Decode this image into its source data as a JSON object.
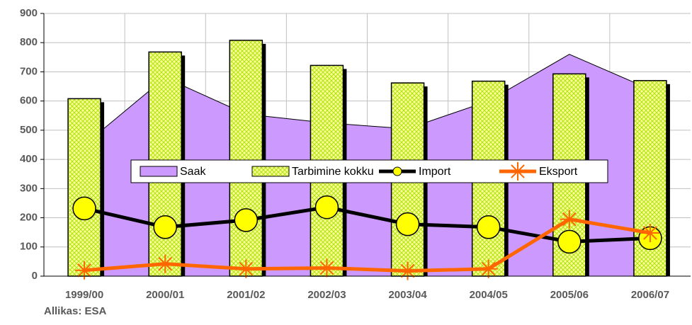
{
  "chart_data": {
    "type": "combo",
    "categories": [
      "1999/00",
      "2000/01",
      "2001/02",
      "2002/03",
      "2003/04",
      "2004/05",
      "2005/06",
      "2006/07"
    ],
    "series": [
      {
        "name": "Saak",
        "kind": "area",
        "color": "#cc99ff",
        "values": [
          450,
          680,
          555,
          525,
          505,
          600,
          760,
          640
        ]
      },
      {
        "name": "Tarbimine kokku",
        "kind": "bar",
        "color": "#ffff99",
        "pattern_color": "#b5e61d",
        "values": [
          608,
          768,
          808,
          722,
          662,
          668,
          693,
          670
        ]
      },
      {
        "name": "Import",
        "kind": "line",
        "color": "#000000",
        "marker": "circle",
        "marker_color": "#ffff00",
        "values": [
          232,
          168,
          192,
          236,
          178,
          168,
          118,
          130
        ]
      },
      {
        "name": "Eksport",
        "kind": "line",
        "color": "#ff6600",
        "marker": "star",
        "marker_color": "#ff6600",
        "values": [
          20,
          42,
          25,
          28,
          18,
          25,
          195,
          148
        ]
      }
    ],
    "ylim": [
      0,
      900
    ],
    "yticks": [
      0,
      100,
      200,
      300,
      400,
      500,
      600,
      700,
      800,
      900
    ],
    "grid": true,
    "legend": "center",
    "source": "Allikas: ESA"
  }
}
